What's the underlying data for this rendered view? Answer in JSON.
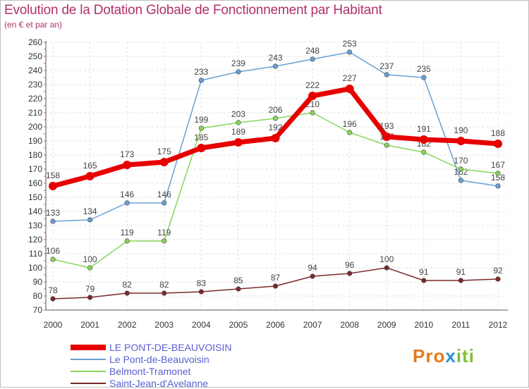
{
  "header": {
    "title": "Evolution de la Dotation Globale de Fonctionnement par Habitant",
    "subtitle": "(en € et par an)"
  },
  "chart_data": {
    "type": "line",
    "x": [
      "2000",
      "2001",
      "2002",
      "2003",
      "2004",
      "2005",
      "2006",
      "2007",
      "2008",
      "2009",
      "2010",
      "2011",
      "2012"
    ],
    "ylim": [
      70,
      260
    ],
    "yticks": [
      70,
      80,
      90,
      100,
      110,
      120,
      130,
      140,
      150,
      160,
      170,
      180,
      190,
      200,
      210,
      220,
      230,
      240,
      250,
      260
    ],
    "grid": true,
    "legend_position": "bottom-left",
    "series": [
      {
        "name": "LE PONT-DE-BEAUVOISIN",
        "color": "#e60000",
        "highlight": true,
        "values": [
          158,
          165,
          173,
          175,
          185,
          189,
          192,
          222,
          227,
          193,
          191,
          190,
          188
        ]
      },
      {
        "name": "Le Pont-de-Beauvoisin",
        "color": "#6a9fd4",
        "highlight": false,
        "values": [
          133,
          134,
          146,
          146,
          233,
          239,
          243,
          248,
          253,
          237,
          235,
          162,
          158
        ]
      },
      {
        "name": "Belmont-Tramonet",
        "color": "#88d55a",
        "highlight": false,
        "values": [
          106,
          100,
          119,
          119,
          199,
          203,
          206,
          210,
          196,
          187,
          182,
          170,
          167
        ]
      },
      {
        "name": "Saint-Jean-d'Avelanne",
        "color": "#7a2a2a",
        "highlight": false,
        "values": [
          78,
          79,
          82,
          82,
          83,
          85,
          87,
          94,
          96,
          100,
          91,
          91,
          92
        ]
      }
    ]
  },
  "logo": {
    "part1": "Pro",
    "part2": "x",
    "part3": "iti"
  }
}
